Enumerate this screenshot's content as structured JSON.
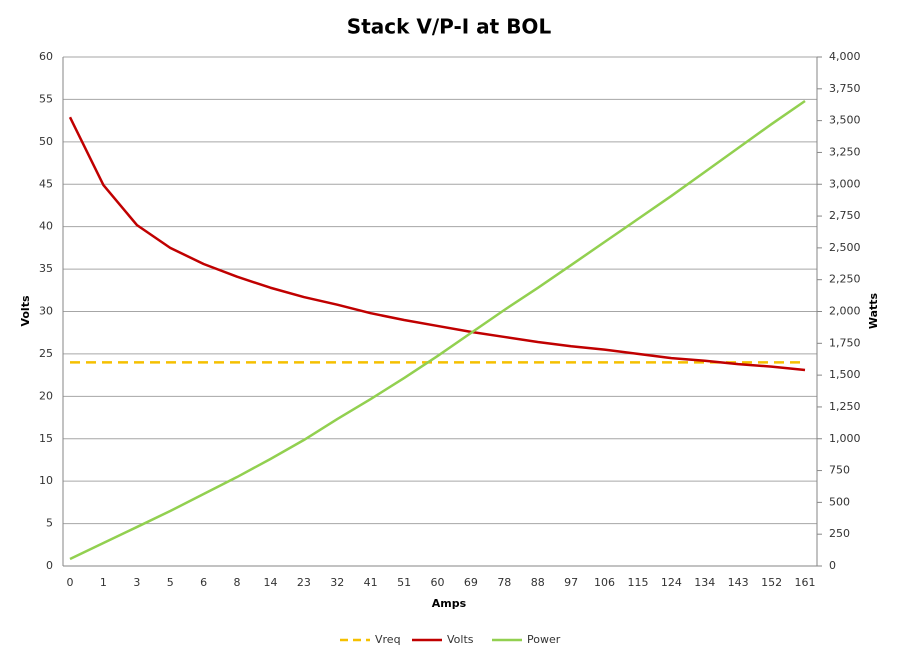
{
  "chart_data": {
    "type": "line",
    "title": "Stack V/P-I at BOL",
    "x_label": "Amps",
    "y_label": "Volts",
    "y2_label": "Watts",
    "categories": [
      "0",
      "1",
      "3",
      "5",
      "6",
      "8",
      "14",
      "23",
      "32",
      "41",
      "51",
      "60",
      "69",
      "78",
      "88",
      "97",
      "106",
      "115",
      "124",
      "134",
      "143",
      "152",
      "161"
    ],
    "series": [
      {
        "name": "Vreq",
        "color": "#f5c000",
        "dashed": true,
        "values": [
          24,
          24,
          24,
          24,
          24,
          24,
          24,
          24,
          24,
          24,
          24,
          24,
          24,
          24,
          24,
          24,
          24,
          24,
          24,
          24,
          24,
          24,
          24
        ]
      },
      {
        "name": "Volts",
        "color": "#c00000",
        "values": [
          52.9,
          44.9,
          40.2,
          37.5,
          35.6,
          34.1,
          32.8,
          31.7,
          30.8,
          29.8,
          29.0,
          28.3,
          27.6,
          27.0,
          26.4,
          25.9,
          25.5,
          25.0,
          24.5,
          24.2,
          23.8,
          23.5,
          23.1
        ]
      },
      {
        "name": "Power",
        "color": "#92d050",
        "axis": "y2",
        "values": [
          55,
          181,
          306,
          432,
          566,
          699,
          841,
          990,
          1155,
          1312,
          1477,
          1650,
          1831,
          2012,
          2185,
          2365,
          2546,
          2727,
          2908,
          3096,
          3285,
          3473,
          3654
        ]
      }
    ],
    "ylim": [
      0,
      60
    ],
    "yticks": [
      0,
      5,
      10,
      15,
      20,
      25,
      30,
      35,
      40,
      45,
      50,
      55,
      60
    ],
    "y2lim": [
      0,
      4000
    ],
    "y2ticks": [
      0,
      250,
      500,
      750,
      {
        "value": 1000,
        "label": "1,000"
      },
      {
        "value": 1250,
        "label": "1,250"
      },
      {
        "value": 1500,
        "label": "1,500"
      },
      {
        "value": 1750,
        "label": "1,750"
      },
      {
        "value": 2000,
        "label": "2,000"
      },
      {
        "value": 2250,
        "label": "2,250"
      },
      {
        "value": 2500,
        "label": "2,500"
      },
      {
        "value": 2750,
        "label": "2,750"
      },
      {
        "value": 3000,
        "label": "3,000"
      },
      {
        "value": 3250,
        "label": "3,250"
      },
      {
        "value": 3500,
        "label": "3,500"
      },
      {
        "value": 3750,
        "label": "3,750"
      },
      {
        "value": 4000,
        "label": "4,000"
      }
    ],
    "grid": true,
    "legend": "bottom"
  }
}
